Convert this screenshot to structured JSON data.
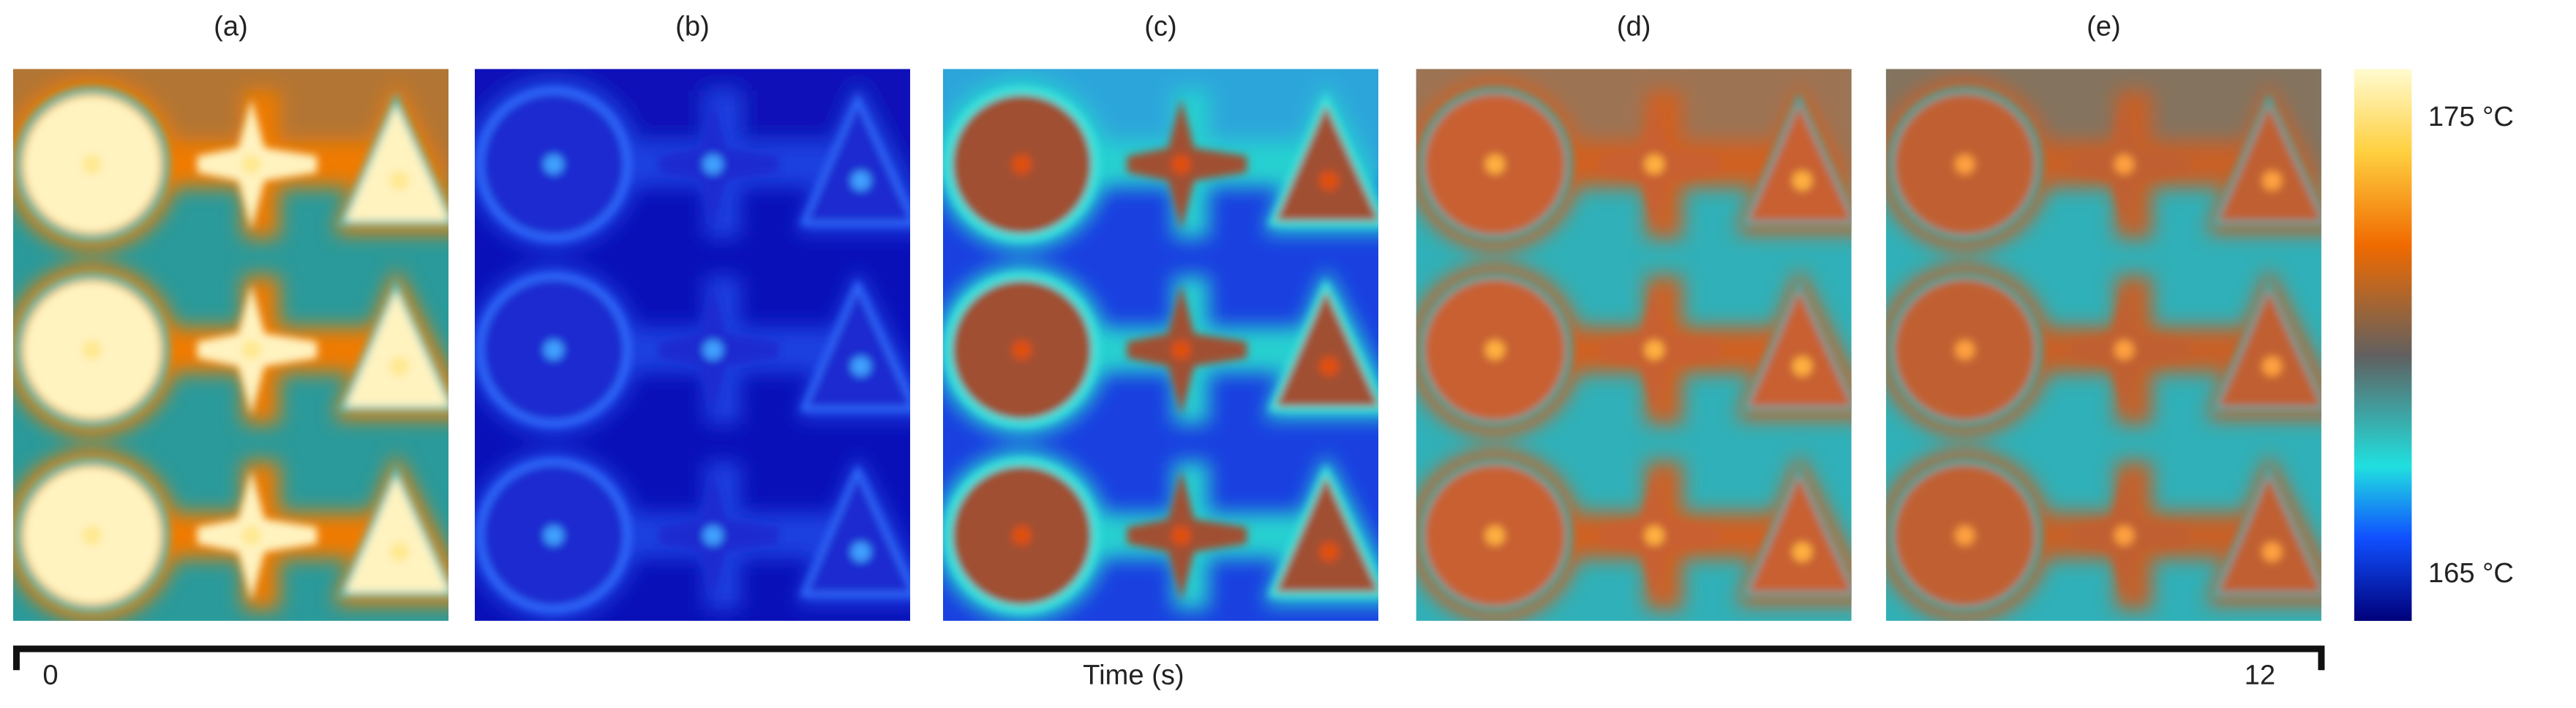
{
  "panels": [
    {
      "label": "(a)"
    },
    {
      "label": "(b)"
    },
    {
      "label": "(c)"
    },
    {
      "label": "(d)"
    },
    {
      "label": "(e)"
    }
  ],
  "colorbar": {
    "max_label": "175 °C",
    "min_label": "165 °C"
  },
  "timeline": {
    "start": 0,
    "label": "Time (s)",
    "end": 12
  }
}
